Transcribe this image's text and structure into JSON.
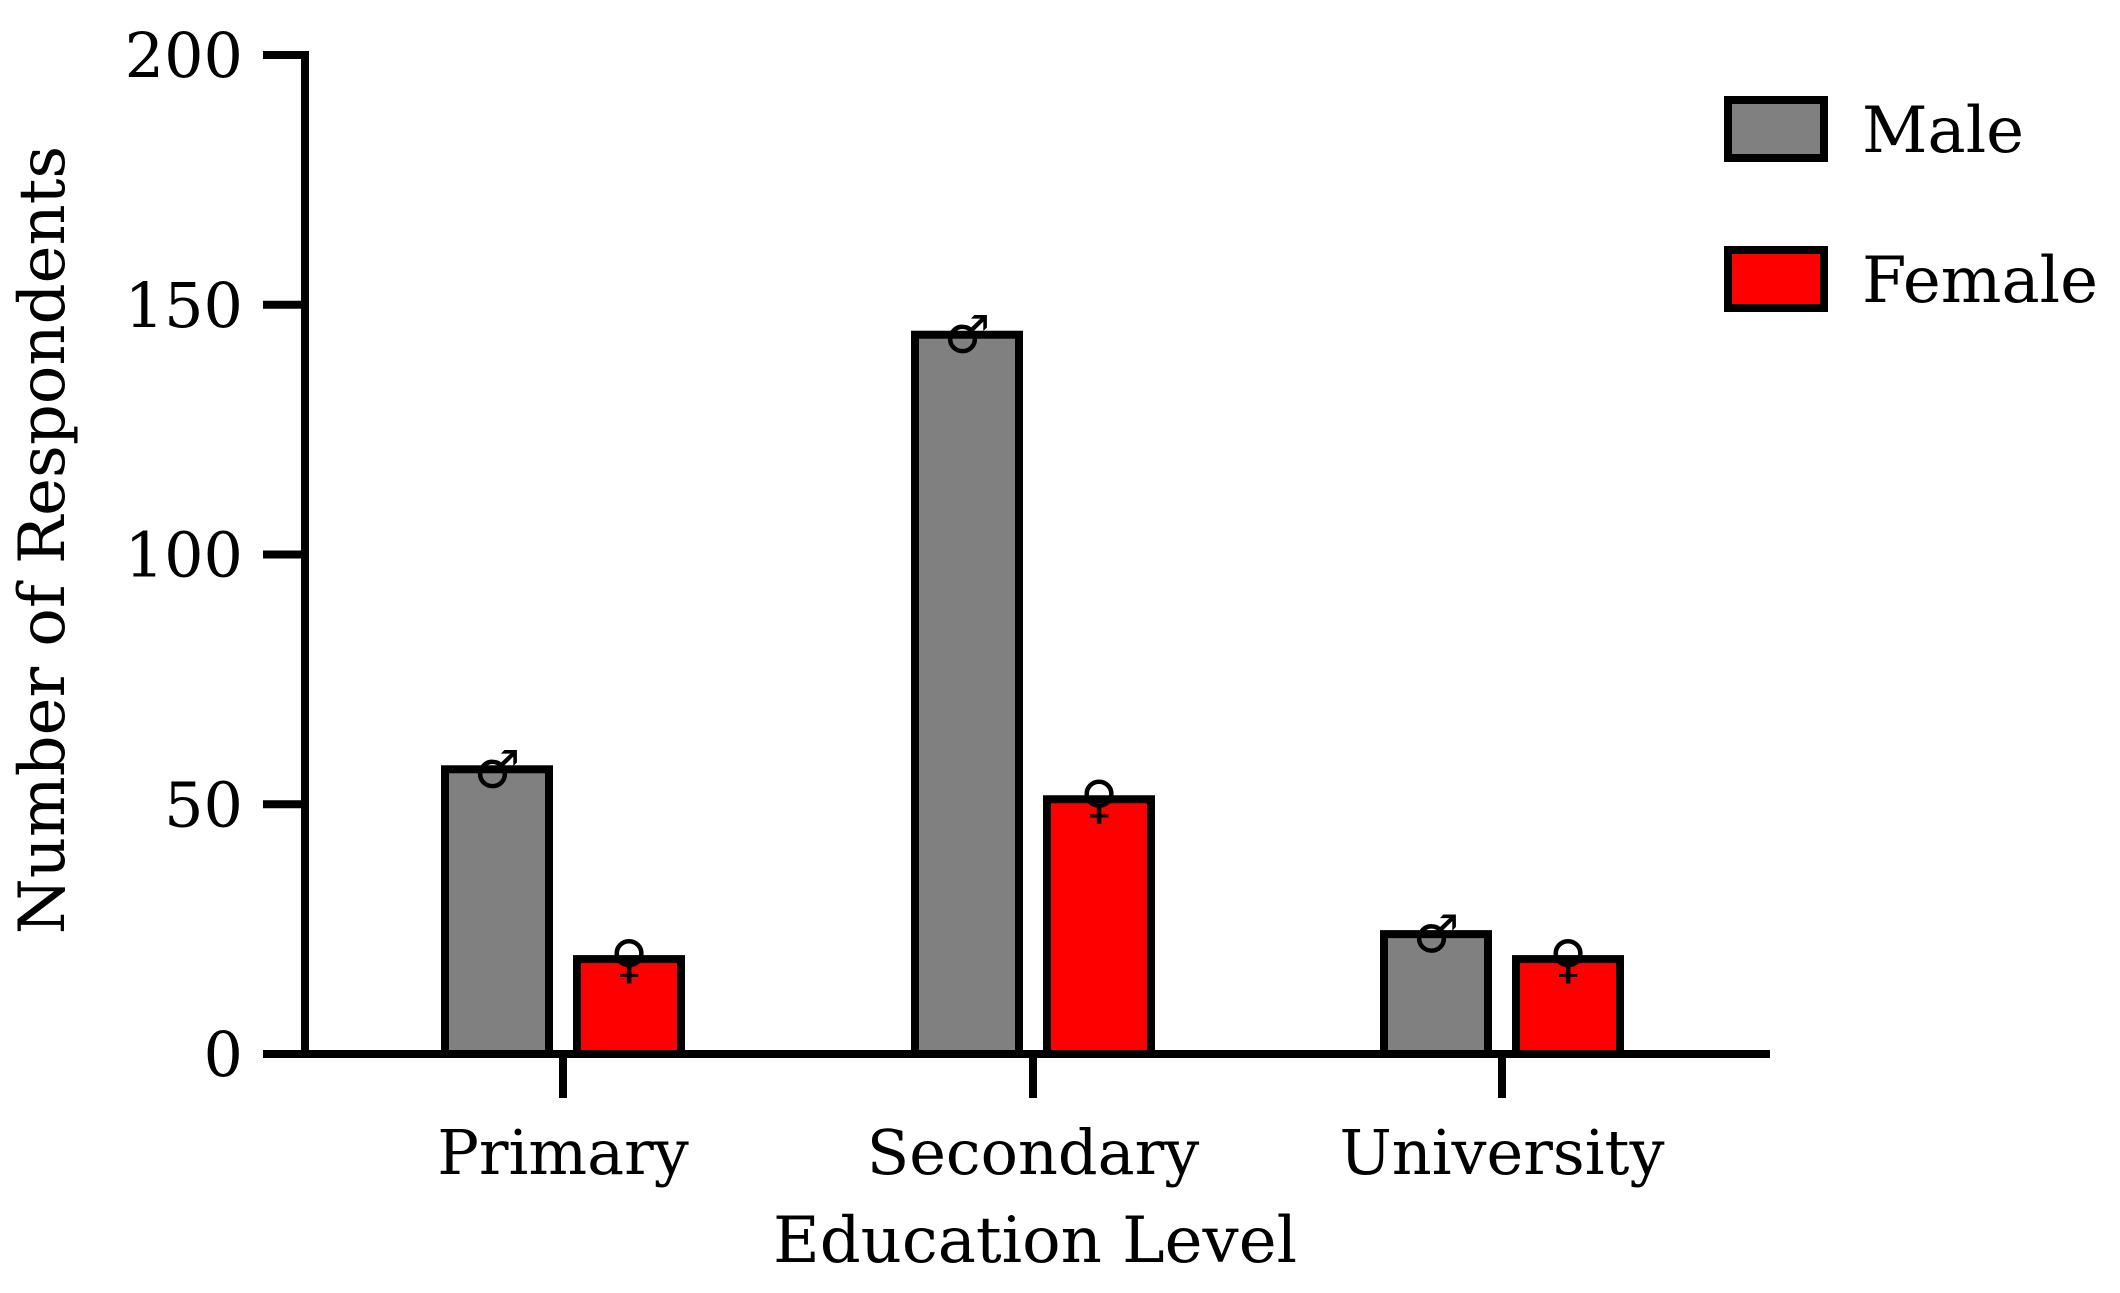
{
  "chart_data": {
    "type": "bar",
    "title": "",
    "xlabel": "Education Level",
    "ylabel": "Number of Respondents",
    "categories": [
      "Primary",
      "Secondary",
      "University"
    ],
    "ylim": [
      0,
      200
    ],
    "yticks": [
      0,
      50,
      100,
      150,
      200
    ],
    "legend_position": "top-right",
    "grid": false,
    "series": [
      {
        "name": "Male",
        "values": [
          57,
          144,
          24
        ],
        "color": "#808080",
        "symbol": "♂",
        "symbol_icon": "male-symbol-icon"
      },
      {
        "name": "Female",
        "values": [
          19,
          51,
          19
        ],
        "color": "#ff0000",
        "symbol": "♀",
        "symbol_icon": "female-symbol-icon"
      }
    ]
  }
}
